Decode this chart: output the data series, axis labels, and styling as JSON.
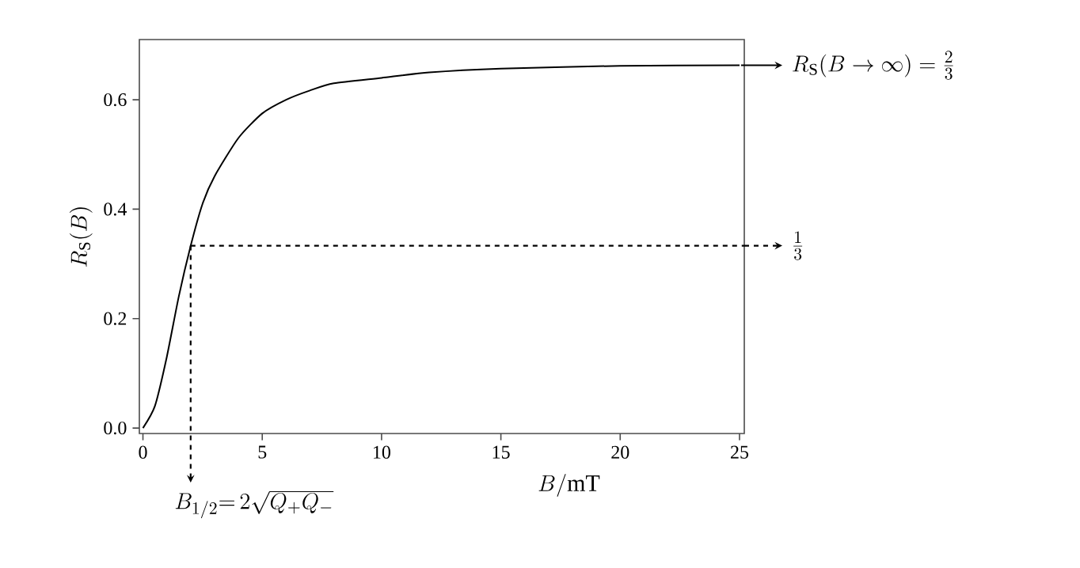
{
  "chart_data": {
    "type": "line",
    "xlabel": "B/\\mathrm{mT}",
    "ylabel": "R_\\mathrm{S}(B)",
    "x": [
      0,
      0.5,
      1,
      1.5,
      2,
      2.5,
      3,
      4,
      5,
      6,
      7,
      8,
      10,
      12,
      15,
      20,
      25
    ],
    "series": [
      {
        "color": "#000000",
        "values": [
          0,
          0.04,
          0.13,
          0.24,
          0.333,
          0.41,
          0.46,
          0.53,
          0.575,
          0.6,
          0.617,
          0.63,
          0.64,
          0.65,
          0.657,
          0.662,
          0.663
        ]
      }
    ],
    "xlim": [
      -0.15,
      25.2
    ],
    "ylim": [
      -0.01,
      0.71
    ],
    "xticks": [
      0,
      5,
      10,
      15,
      20,
      25
    ],
    "yticks": [
      {
        "value": 0,
        "label": "0.0"
      },
      {
        "value": 0.2,
        "label": "0.2"
      },
      {
        "value": 0.4,
        "label": "0.4"
      },
      {
        "value": 0.6,
        "label": "0.6"
      }
    ],
    "annotations": [
      "R_\\mathrm{S}(B\\to\\infty)=\\frac{2}{3}"
    ],
    "ref_lines": [
      {
        "axis": "y",
        "value": 0.3333,
        "label": "\\frac{1}{3}",
        "line_style": "dashed"
      },
      {
        "axis": "x",
        "value": 2,
        "label": "B_{1/2}{=}\\,2\\sqrt{Q_{+}Q_{-}}",
        "line_style": "dashed"
      }
    ],
    "marker": "none",
    "line_style": "solid"
  }
}
